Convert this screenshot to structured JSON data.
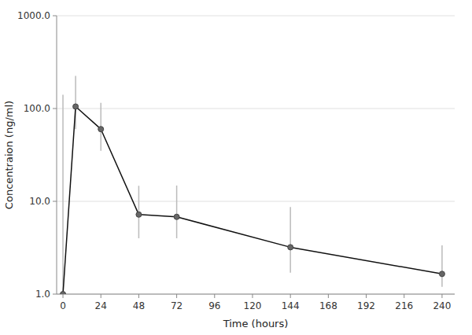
{
  "chart_data": {
    "type": "line",
    "x": [
      0,
      8,
      24,
      48,
      72,
      144,
      240
    ],
    "values": [
      1.0,
      105.0,
      60.0,
      7.2,
      6.8,
      3.2,
      1.65
    ],
    "error_lower": [
      0.0,
      45.0,
      25.0,
      3.2,
      2.8,
      1.5,
      0.45
    ],
    "error_upper": [
      140.0,
      120.0,
      55.0,
      7.5,
      8.0,
      5.5,
      1.7
    ],
    "xlabel": "Time (hours)",
    "ylabel": "Concentraion (ng/ml)",
    "xlim": [
      -4,
      248
    ],
    "ylim": [
      1.0,
      1000.0
    ],
    "xticks": [
      0,
      24,
      48,
      72,
      96,
      120,
      144,
      168,
      192,
      216,
      240
    ],
    "yticks": [
      {
        "value": 1.0,
        "label": "1.0"
      },
      {
        "value": 10.0,
        "label": "10.0"
      },
      {
        "value": 100.0,
        "label": "100.0"
      },
      {
        "value": 1000.0,
        "label": "1000.0"
      }
    ],
    "log": "y",
    "grid": "y",
    "color": "#111111",
    "marker": "circle"
  }
}
